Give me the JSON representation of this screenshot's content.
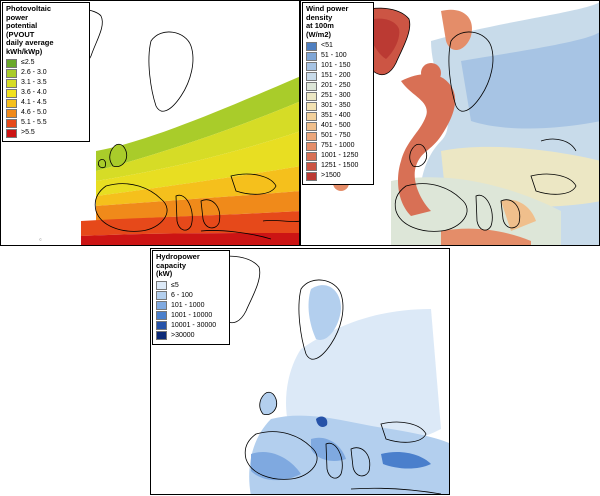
{
  "panels": {
    "pv": {
      "legend_title_lines": [
        "Photovoltaic",
        "power",
        "potential",
        "(PVOUT",
        "daily average",
        "kWh/kWp)"
      ],
      "legend": [
        {
          "label": "≤2.5",
          "color": "#6aa82a"
        },
        {
          "label": "2.6 - 3.0",
          "color": "#a9cc2a"
        },
        {
          "label": "3.1 - 3.5",
          "color": "#d6dc26"
        },
        {
          "label": "3.6 - 4.0",
          "color": "#f2e21f"
        },
        {
          "label": "4.1 - 4.5",
          "color": "#f5c01c"
        },
        {
          "label": "4.6 - 5.0",
          "color": "#f08a1a"
        },
        {
          "label": "5.1 - 5.5",
          "color": "#e6491a"
        },
        {
          "label": ">5.5",
          "color": "#cc1414"
        }
      ]
    },
    "wind": {
      "legend_title_lines": [
        "Wind power",
        "density",
        "at 100m",
        "(W/m2)"
      ],
      "legend": [
        {
          "label": "<51",
          "color": "#4f7fc0"
        },
        {
          "label": "51 - 100",
          "color": "#7fa6d6"
        },
        {
          "label": "101 - 150",
          "color": "#a7c4e4"
        },
        {
          "label": "151 - 200",
          "color": "#c8dbea"
        },
        {
          "label": "201 - 250",
          "color": "#dde6d8"
        },
        {
          "label": "251 - 300",
          "color": "#ece7c4"
        },
        {
          "label": "301 - 350",
          "color": "#f3e2b2"
        },
        {
          "label": "351 - 400",
          "color": "#f3d19c"
        },
        {
          "label": "401 - 500",
          "color": "#f0bf8c"
        },
        {
          "label": "501 - 750",
          "color": "#eca77c"
        },
        {
          "label": "751 - 1000",
          "color": "#e48d69"
        },
        {
          "label": "1001 - 1250",
          "color": "#d87055"
        },
        {
          "label": "1251 - 1500",
          "color": "#cc5544"
        },
        {
          "label": ">1500",
          "color": "#bb3a33"
        }
      ]
    },
    "hydro": {
      "legend_title_lines": [
        "Hydropower",
        "capacity",
        "(kW)"
      ],
      "legend": [
        {
          "label": "≤5",
          "color": "#dce9f7"
        },
        {
          "label": "6 - 100",
          "color": "#b3cfee"
        },
        {
          "label": "101 - 1000",
          "color": "#7fa9e0"
        },
        {
          "label": "1001 - 10000",
          "color": "#4a7fcc"
        },
        {
          "label": "10001 - 30000",
          "color": "#2652a8"
        },
        {
          "label": ">30000",
          "color": "#0d2a78"
        }
      ]
    }
  }
}
